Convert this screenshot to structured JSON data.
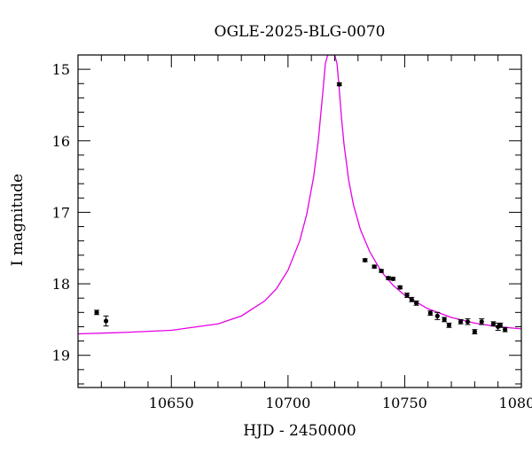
{
  "chart_data": {
    "type": "scatter",
    "title": "OGLE-2025-BLG-0070",
    "xlabel": "HJD - 2450000",
    "ylabel": "I magnitude",
    "xlim": [
      10610,
      10800
    ],
    "ylim": [
      19.45,
      14.8
    ],
    "y_inverted": true,
    "grid": false,
    "x_major_ticks": [
      10650,
      10700,
      10750,
      10800
    ],
    "x_tick_labels": [
      "10650",
      "10700",
      "10750",
      "10800"
    ],
    "x_minor_step": 10,
    "y_major_ticks": [
      15,
      16,
      17,
      18,
      19
    ],
    "y_tick_labels": [
      "15",
      "16",
      "17",
      "18",
      "19"
    ],
    "y_minor_step": 0.2,
    "colors": {
      "data": "#000000",
      "model": "#e600e6"
    },
    "series": [
      {
        "kind": "points",
        "x": [
          10618,
          10622,
          10722,
          10733,
          10737,
          10740,
          10743,
          10745,
          10748,
          10751,
          10753,
          10755,
          10761,
          10764,
          10767,
          10769,
          10774,
          10777,
          10780,
          10783,
          10788,
          10790,
          10791,
          10793
        ],
        "y": [
          18.4,
          18.52,
          15.21,
          17.67,
          17.76,
          17.82,
          17.92,
          17.93,
          18.05,
          18.16,
          18.22,
          18.27,
          18.41,
          18.45,
          18.5,
          18.58,
          18.53,
          18.53,
          18.67,
          18.53,
          18.56,
          18.6,
          18.58,
          18.64
        ],
        "err": [
          0.03,
          0.07,
          0.02,
          0.02,
          0.02,
          0.02,
          0.02,
          0.02,
          0.02,
          0.03,
          0.03,
          0.03,
          0.03,
          0.05,
          0.03,
          0.03,
          0.03,
          0.04,
          0.03,
          0.04,
          0.03,
          0.05,
          0.03,
          0.03
        ]
      },
      {
        "kind": "model",
        "x": [
          10610,
          10630,
          10650,
          10670,
          10680,
          10690,
          10695,
          10700,
          10705,
          10708,
          10711,
          10713,
          10715,
          10716,
          10717,
          10718,
          10719,
          10720,
          10721,
          10722,
          10723,
          10724,
          10726,
          10728,
          10731,
          10735,
          10740,
          10745,
          10750,
          10760,
          10770,
          10780,
          10790,
          10800
        ],
        "y": [
          18.7,
          18.68,
          18.65,
          18.56,
          18.45,
          18.24,
          18.07,
          17.81,
          17.4,
          17.03,
          16.5,
          15.99,
          15.29,
          14.92,
          14.8,
          14.8,
          14.8,
          14.8,
          14.92,
          15.3,
          15.71,
          16.05,
          16.55,
          16.89,
          17.24,
          17.55,
          17.83,
          18.02,
          18.16,
          18.35,
          18.47,
          18.55,
          18.6,
          18.63
        ]
      }
    ]
  }
}
